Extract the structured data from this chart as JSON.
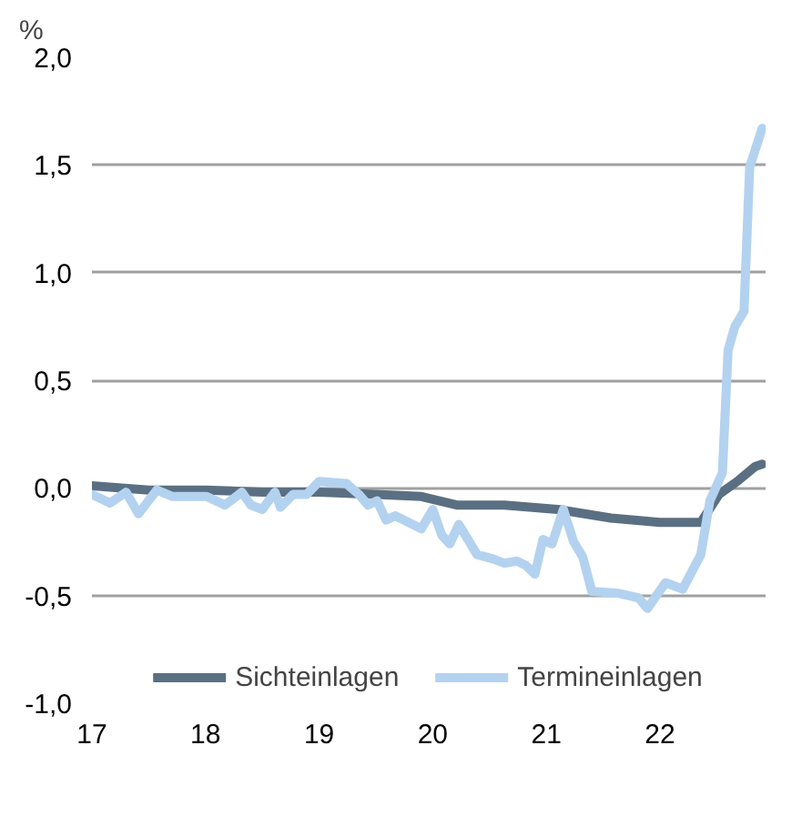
{
  "chart_data": {
    "type": "line",
    "ylabel": "%",
    "xlim": [
      17,
      22.93
    ],
    "xticks": [
      17,
      18,
      19,
      20,
      21,
      22
    ],
    "ylim": [
      -1,
      2
    ],
    "yticks": [
      {
        "value": -1,
        "label": "-1,0"
      },
      {
        "value": -0.5,
        "label": "-0,5"
      },
      {
        "value": 0,
        "label": "0,0"
      },
      {
        "value": 0.5,
        "label": "0,5"
      },
      {
        "value": 1,
        "label": "1,0"
      },
      {
        "value": 1.5,
        "label": "1,5"
      },
      {
        "value": 2,
        "label": "2,0"
      }
    ],
    "grid": "y",
    "legend": "bottom",
    "line_style": "solid",
    "marker": "none",
    "series": [
      {
        "name": "Sichteinlagen",
        "color": "#5a6f82",
        "x": [
          17.0,
          17.5,
          18.0,
          18.5,
          19.0,
          19.5,
          19.9,
          20.22,
          20.63,
          21.1,
          21.57,
          22.0,
          22.36,
          22.52,
          22.68,
          22.84,
          22.9
        ],
        "values": [
          0.01,
          -0.01,
          -0.01,
          -0.02,
          -0.02,
          -0.03,
          -0.04,
          -0.08,
          -0.08,
          -0.1,
          -0.14,
          -0.16,
          -0.16,
          -0.03,
          0.03,
          0.1,
          0.11
        ]
      },
      {
        "name": "Termineinlagen",
        "color": "#b3d2f0",
        "x": [
          17.0,
          17.16,
          17.3,
          17.41,
          17.57,
          17.71,
          18.01,
          18.17,
          18.32,
          18.4,
          18.5,
          18.61,
          18.66,
          18.77,
          18.89,
          19.0,
          19.24,
          19.35,
          19.43,
          19.51,
          19.59,
          19.67,
          19.9,
          20.0,
          20.08,
          20.15,
          20.23,
          20.39,
          20.53,
          20.63,
          20.74,
          20.82,
          20.9,
          20.97,
          21.05,
          21.15,
          21.24,
          21.32,
          21.4,
          21.64,
          21.81,
          21.89,
          22.05,
          22.2,
          22.28,
          22.36,
          22.44,
          22.55,
          22.6,
          22.66,
          22.74,
          22.79,
          22.9
        ],
        "values": [
          -0.03,
          -0.07,
          -0.02,
          -0.12,
          -0.01,
          -0.04,
          -0.04,
          -0.08,
          -0.02,
          -0.08,
          -0.1,
          -0.02,
          -0.09,
          -0.03,
          -0.03,
          0.03,
          0.02,
          -0.03,
          -0.08,
          -0.06,
          -0.15,
          -0.13,
          -0.19,
          -0.1,
          -0.22,
          -0.26,
          -0.17,
          -0.31,
          -0.33,
          -0.35,
          -0.34,
          -0.36,
          -0.4,
          -0.24,
          -0.26,
          -0.1,
          -0.25,
          -0.32,
          -0.48,
          -0.49,
          -0.51,
          -0.56,
          -0.44,
          -0.47,
          -0.39,
          -0.31,
          -0.06,
          0.07,
          0.64,
          0.75,
          0.82,
          1.49,
          1.67
        ]
      }
    ]
  }
}
